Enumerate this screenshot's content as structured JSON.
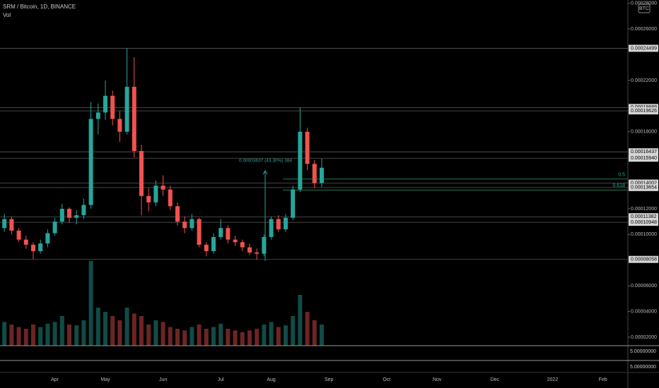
{
  "chart_data": {
    "type": "candlestick",
    "title": "SRM / Bitcoin, 1D, BINANCE",
    "indicator": "Vol",
    "currency": "BTC",
    "up_color": "#26a69a",
    "down_color": "#ef5350",
    "categories": [
      null,
      null,
      null,
      null,
      null,
      null,
      null,
      null,
      "Apr",
      null,
      null,
      null,
      null,
      null,
      null,
      "May",
      null,
      null,
      null,
      null,
      null,
      null,
      null,
      "Jun",
      null,
      null,
      null,
      null,
      null,
      null,
      null,
      "Jul",
      null,
      null,
      null,
      null,
      null,
      null,
      "Aug",
      null,
      null,
      null,
      null,
      null,
      null,
      null,
      "Sep",
      null,
      null,
      null,
      null,
      null,
      null,
      null,
      "Oct",
      null,
      null,
      null,
      null,
      null,
      null,
      "Nov",
      null,
      null,
      null,
      null,
      null,
      null,
      null,
      "Dec",
      null,
      null,
      null,
      null,
      null,
      null,
      null,
      "2022",
      null,
      null,
      null,
      null,
      null,
      null,
      "Feb"
    ],
    "open": [
      0.0001,
      0.000105,
      0.000112,
      0.000103,
      9.6e-05,
      9.2e-05,
      8.7e-05,
      9.3e-05,
      0.000101,
      0.00011,
      0.00012,
      0.000113,
      0.000115,
      0.000123,
      0.00019,
      0.000195,
      0.000208,
      0.00019,
      0.00018,
      0.000215,
      0.000165,
      0.00013,
      0.000125,
      0.000138,
      0.000135,
      0.000122,
      0.00011,
      0.000105,
      0.000112,
      9.2e-05,
      8.7e-05,
      9.8e-05,
      0.000105,
      9.6e-05,
      9.4e-05,
      9e-05,
      8.6e-05,
      8.5e-05,
      9.8e-05,
      0.000112,
      0.000104,
      0.000113,
      0.000135,
      0.00018,
      0.000155,
      0.00014,
      null,
      null,
      null,
      null,
      null,
      null,
      null,
      null,
      null,
      null,
      null,
      null,
      null,
      null,
      null,
      null,
      null,
      null,
      null,
      null,
      null,
      null,
      null,
      null,
      null,
      null,
      null,
      null,
      null,
      null,
      null,
      null,
      null,
      null,
      null,
      null,
      null,
      null,
      null
    ],
    "high": [
      0.00011,
      0.000116,
      0.000114,
      0.000105,
      9.9e-05,
      9.4e-05,
      9.6e-05,
      0.000104,
      0.000113,
      0.000124,
      0.000121,
      0.000119,
      0.000128,
      0.000203,
      0.000202,
      0.00022,
      0.000212,
      0.000196,
      0.000245,
      0.000238,
      0.00017,
      0.000136,
      0.000142,
      0.000146,
      0.000138,
      0.000125,
      0.000114,
      0.000116,
      0.000113,
      9.4e-05,
      0.000101,
      0.000112,
      0.000107,
      9.9e-05,
      9.6e-05,
      9.3e-05,
      8.9e-05,
      0.0001,
      0.000114,
      0.000115,
      0.000116,
      0.000138,
      0.000199,
      0.000183,
      0.000158,
      0.000159,
      null,
      null,
      null,
      null,
      null,
      null,
      null,
      null,
      null,
      null,
      null,
      null,
      null,
      null,
      null,
      null,
      null,
      null,
      null,
      null,
      null,
      null,
      null,
      null,
      null,
      null,
      null,
      null,
      null,
      null,
      null,
      null,
      null,
      null,
      null,
      null,
      null,
      null,
      null
    ],
    "low": [
      9.8e-05,
      0.000102,
      0.0001,
      9.4e-05,
      8.9e-05,
      8.1e-05,
      8.5e-05,
      9e-05,
      9.9e-05,
      0.000108,
      0.000109,
      0.000108,
      0.000112,
      0.00012,
      0.000178,
      0.000189,
      0.000185,
      0.000172,
      0.000178,
      0.00016,
      0.000115,
      0.000118,
      0.000122,
      0.00013,
      0.000119,
      0.000107,
      0.000101,
      0.000103,
      9e-05,
      8.3e-05,
      8.5e-05,
      9.6e-05,
      9.3e-05,
      9.1e-05,
      8.7e-05,
      8.4e-05,
      8.06e-05,
      8.3e-05,
      9.6e-05,
      0.000102,
      0.000102,
      0.000111,
      0.000133,
      0.00015,
      0.000136,
      0.000137,
      null,
      null,
      null,
      null,
      null,
      null,
      null,
      null,
      null,
      null,
      null,
      null,
      null,
      null,
      null,
      null,
      null,
      null,
      null,
      null,
      null,
      null,
      null,
      null,
      null,
      null,
      null,
      null,
      null,
      null,
      null,
      null,
      null,
      null,
      null,
      null,
      null,
      null,
      null
    ],
    "close": [
      0.000105,
      0.000112,
      0.000103,
      9.6e-05,
      9.2e-05,
      8.7e-05,
      9.3e-05,
      0.000101,
      0.00011,
      0.00012,
      0.000113,
      0.000115,
      0.000123,
      0.00019,
      0.000195,
      0.000208,
      0.00019,
      0.00018,
      0.000215,
      0.000165,
      0.00013,
      0.000125,
      0.000138,
      0.000135,
      0.000122,
      0.00011,
      0.000105,
      0.000112,
      9.2e-05,
      8.7e-05,
      9.8e-05,
      0.000105,
      9.6e-05,
      9.4e-05,
      9e-05,
      8.6e-05,
      8.5e-05,
      9.8e-05,
      0.000112,
      0.000104,
      0.000113,
      0.000135,
      0.00018,
      0.000155,
      0.00014,
      0.000152,
      null,
      null,
      null,
      null,
      null,
      null,
      null,
      null,
      null,
      null,
      null,
      null,
      null,
      null,
      null,
      null,
      null,
      null,
      null,
      null,
      null,
      null,
      null,
      null,
      null,
      null,
      null,
      null,
      null,
      null,
      null,
      null,
      null,
      null,
      null,
      null,
      null,
      null,
      null
    ],
    "volume": [
      30,
      28,
      25,
      22,
      20,
      25,
      22,
      26,
      28,
      35,
      25,
      24,
      30,
      100,
      45,
      40,
      35,
      30,
      45,
      38,
      35,
      25,
      30,
      28,
      22,
      20,
      18,
      22,
      25,
      20,
      22,
      26,
      20,
      18,
      16,
      18,
      20,
      25,
      28,
      22,
      24,
      35,
      60,
      40,
      30,
      25,
      null,
      null,
      null,
      null,
      null,
      null,
      null,
      null,
      null,
      null,
      null,
      null,
      null,
      null,
      null,
      null,
      null,
      null,
      null,
      null,
      null,
      null,
      null,
      null,
      null,
      null,
      null,
      null,
      null,
      null,
      null,
      null,
      null,
      null,
      null,
      null,
      null,
      null,
      null
    ],
    "ylim": [
      1.34e-05,
      0.0002826
    ],
    "yticks": [
      {
        "value": 0.00028,
        "label": "0.00028000"
      },
      {
        "value": 0.00026,
        "label": "0.00026000"
      },
      {
        "value": 0.00022,
        "label": "0.00022000"
      },
      {
        "value": 0.00018,
        "label": "0.00018000"
      },
      {
        "value": 0.00012,
        "label": "0.00012000"
      },
      {
        "value": 0.0001,
        "label": "0.00010000"
      },
      {
        "value": 6e-05,
        "label": "0.00006000"
      },
      {
        "value": 4e-05,
        "label": "0.00004000"
      },
      {
        "value": 2e-05,
        "label": "0.00002000"
      }
    ],
    "levels": [
      {
        "value": 0.00024499,
        "label": "0.00024499"
      },
      {
        "value": 0.00019889,
        "label": "0.00019889"
      },
      {
        "value": 0.00019626,
        "label": "0.00019626"
      },
      {
        "value": 0.00016437,
        "label": "0.00016437"
      },
      {
        "value": 0.0001594,
        "label": "0.00015940"
      },
      {
        "value": 0.00014002,
        "label": "0.00014002"
      },
      {
        "value": 0.00013654,
        "label": "0.00013654"
      },
      {
        "value": 0.00011382,
        "label": "0.00011382"
      },
      {
        "value": 0.00010948,
        "label": "0.00010948"
      },
      {
        "value": 8.058e-05,
        "label": "0.00008058"
      }
    ],
    "fib": [
      {
        "value": 0.0001432,
        "label": "0.5"
      },
      {
        "value": 0.0001346,
        "label": "0.618"
      }
    ],
    "measure": "0.00003637 (43.30%) 384",
    "panes": [
      "5.00000000",
      "5.00000000"
    ]
  }
}
